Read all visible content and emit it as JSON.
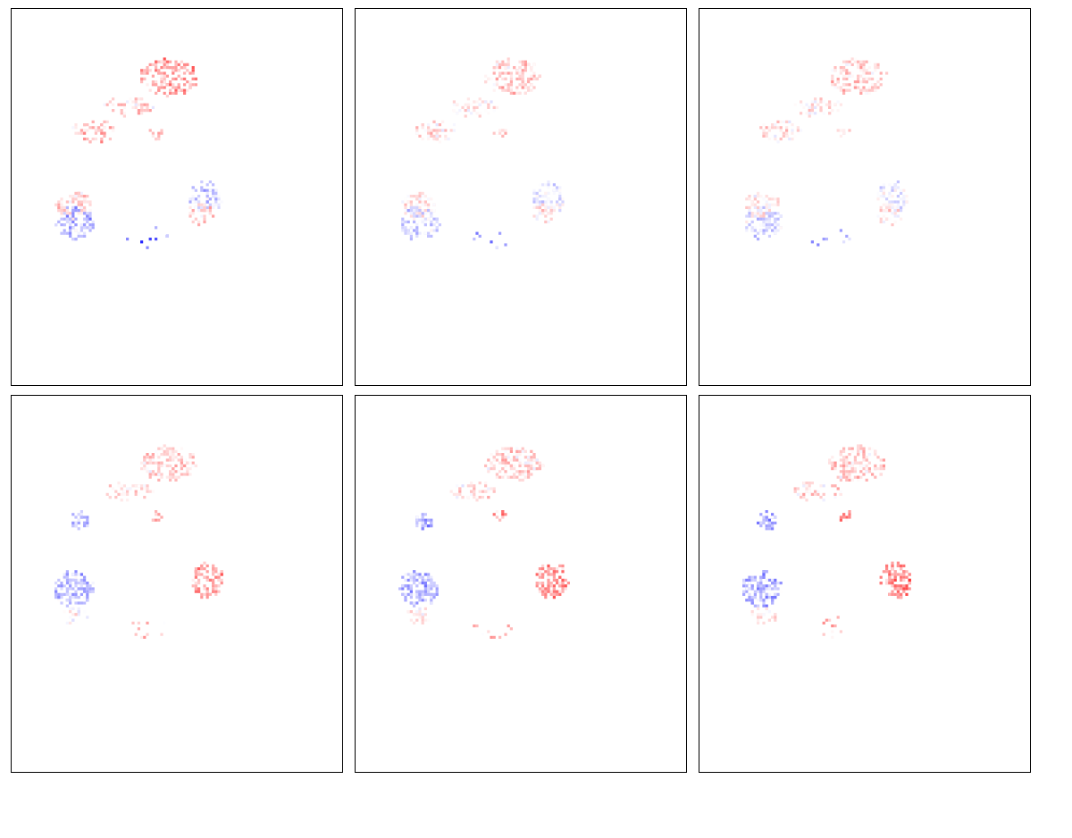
{
  "chart_data": [
    {
      "type": "heatmap",
      "colormap": "bwr",
      "grid": false,
      "panel": "top-left",
      "mode": "a",
      "gain": 1.0
    },
    {
      "type": "heatmap",
      "colormap": "bwr",
      "grid": false,
      "panel": "top-middle",
      "mode": "a",
      "gain": 0.55
    },
    {
      "type": "heatmap",
      "colormap": "bwr",
      "grid": false,
      "panel": "top-right",
      "mode": "a",
      "gain": 0.5
    },
    {
      "type": "heatmap",
      "colormap": "bwr",
      "grid": false,
      "panel": "bottom-left",
      "mode": "b",
      "gain": 0.8
    },
    {
      "type": "heatmap",
      "colormap": "bwr",
      "grid": false,
      "panel": "bottom-middle",
      "mode": "b",
      "gain": 0.85
    },
    {
      "type": "heatmap",
      "colormap": "bwr",
      "grid": false,
      "panel": "bottom-right",
      "mode": "b",
      "gain": 0.95
    }
  ]
}
